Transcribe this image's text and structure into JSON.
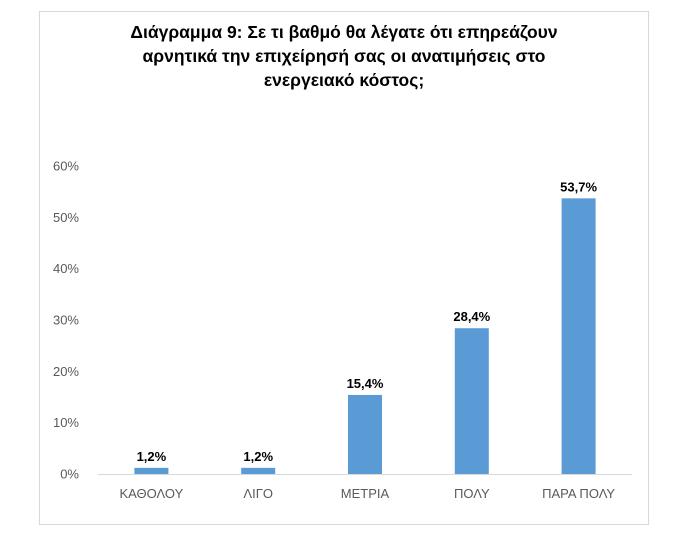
{
  "chart_data": {
    "type": "bar",
    "title_lines": [
      "Διάγραμμα 9: Σε τι βαθμό θα λέγατε ότι επηρεάζουν",
      "αρνητικά την επιχείρησή σας οι ανατιμήσεις στο",
      "ενεργειακό κόστος;"
    ],
    "categories": [
      "ΚΑΘΟΛΟΥ",
      "ΛΙΓΟ",
      "ΜΕΤΡΙΑ",
      "ΠΟΛΥ",
      "ΠΑΡΑ ΠΟΛΥ"
    ],
    "values": [
      1.2,
      1.2,
      15.4,
      28.4,
      53.7
    ],
    "data_labels": [
      "1,2%",
      "1,2%",
      "15,4%",
      "28,4%",
      "53,7%"
    ],
    "yticks": [
      0,
      10,
      20,
      30,
      40,
      50,
      60
    ],
    "ytick_labels": [
      "0%",
      "10%",
      "20%",
      "30%",
      "40%",
      "50%",
      "60%"
    ],
    "ylim": [
      0,
      60
    ],
    "grid": false,
    "legend": "none",
    "bar_color": "#5b9bd5",
    "axis_color": "#d9d9d9"
  }
}
